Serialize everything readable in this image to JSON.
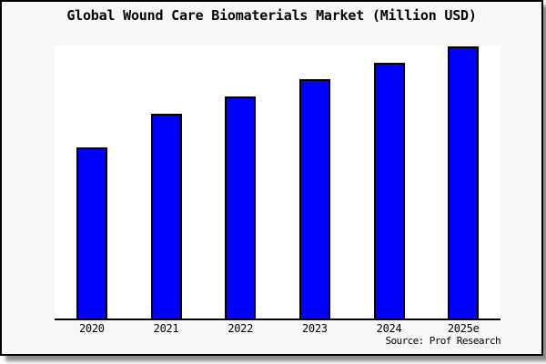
{
  "chart_data": {
    "type": "bar",
    "title": "Global Wound Care Biomaterials Market (Million USD)",
    "categories": [
      "2020",
      "2021",
      "2022",
      "2023",
      "2024",
      "2025e"
    ],
    "values": [
      188,
      225,
      244,
      263,
      281,
      299
    ],
    "xlabel": "",
    "ylabel": "",
    "ylim": [
      0,
      300
    ],
    "value_scale_note": "no y-axis scale shown in image; values are relative bar heights (plot height = 300)",
    "grid": false,
    "legend_visible": false,
    "y_axis_labels_visible": false,
    "bar_color": "#0000ff",
    "bar_border_color": "#000000",
    "plot_background": "#ffffff"
  },
  "source": {
    "text": "Source: Prof Research"
  },
  "colors": {
    "card_background": "#f7f7f7",
    "frame_border": "#000000",
    "shadow": "#999999",
    "text": "#000000"
  }
}
